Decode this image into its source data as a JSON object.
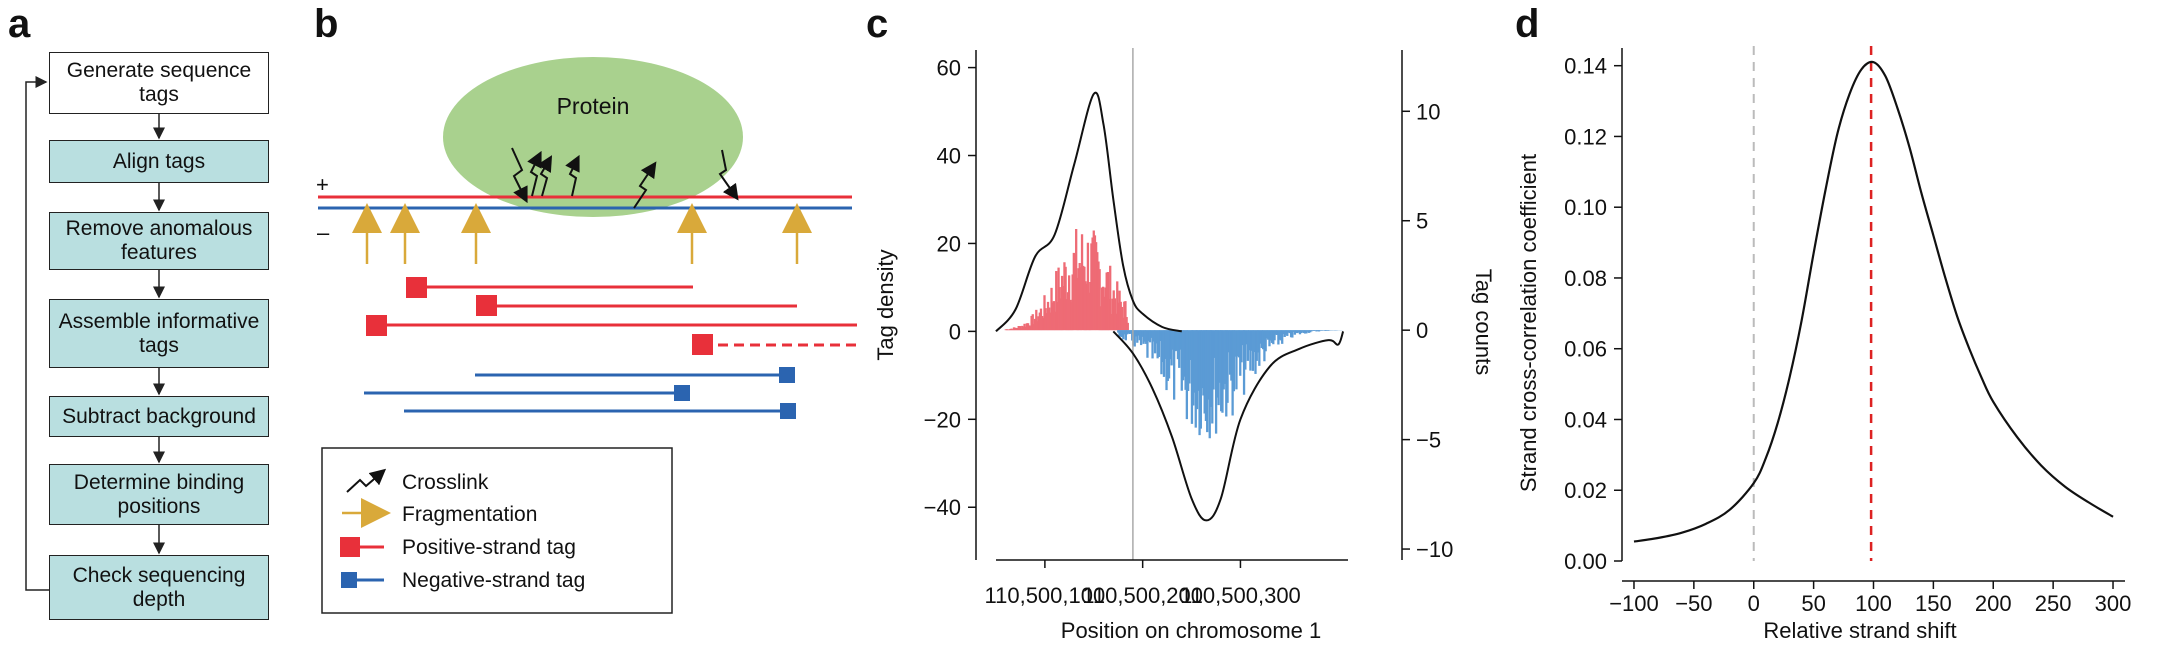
{
  "panel_letters": [
    "a",
    "b",
    "c",
    "d"
  ],
  "flowchart": {
    "steps": [
      "Generate sequence tags",
      "Align tags",
      "Remove anomalous features",
      "Assemble informative tags",
      "Subtract background",
      "Determine binding positions",
      "Check sequencing depth"
    ],
    "colors": {
      "step_fill": "#b9dfe0",
      "first_fill": "#ffffff",
      "border": "#222222"
    }
  },
  "schematic": {
    "protein_label": "Protein",
    "plus_label": "+",
    "minus_label": "–",
    "legend": [
      {
        "symbol": "crosslink",
        "label": "Crosslink"
      },
      {
        "symbol": "fragmentation",
        "label": "Fragmentation"
      },
      {
        "symbol": "positive",
        "label": "Positive-strand tag"
      },
      {
        "symbol": "negative",
        "label": "Negative-strand tag"
      }
    ],
    "colors": {
      "protein": "#a9d18e",
      "positive": "#e8303a",
      "negative": "#2b64b0",
      "arrow": "#d9a93a"
    }
  },
  "chart_data": [
    {
      "panel": "c",
      "type": "line",
      "xlabel": "Position on chromosome 1",
      "ylabel": "Tag density",
      "y2label": "Tag counts",
      "xticks": [
        "110,500,100",
        "110,500,200",
        "110,500,300"
      ],
      "xtick_values": [
        110500100,
        110500200,
        110500300
      ],
      "xlim": [
        110500050,
        110500410
      ],
      "ylim": [
        -52,
        64
      ],
      "yticks": [
        60,
        40,
        20,
        0,
        -20,
        -40
      ],
      "y2lim": [
        -10.5,
        12.8
      ],
      "y2ticks": [
        10,
        5,
        0,
        -5,
        -10
      ],
      "vline_x": 110500190,
      "positive_density": {
        "x": [
          110500050,
          110500070,
          110500090,
          110500110,
          110500130,
          110500150,
          110500160,
          110500170,
          110500180,
          110500190,
          110500200,
          110500220,
          110500240
        ],
        "y": [
          0,
          5,
          17,
          22,
          38,
          54,
          47,
          30,
          15,
          7,
          4,
          1,
          0
        ]
      },
      "negative_density": {
        "x": [
          110500170,
          110500190,
          110500210,
          110500230,
          110500250,
          110500265,
          110500280,
          110500300,
          110500330,
          110500360,
          110500390,
          110500400,
          110500405
        ],
        "y": [
          0,
          -5,
          -13,
          -24,
          -38,
          -43,
          -38,
          -20,
          -8,
          -4,
          -2,
          -3,
          0
        ]
      },
      "positive_counts": {
        "x_range": [
          110500060,
          110500185
        ],
        "max_count": 5
      },
      "negative_counts": {
        "x_range": [
          110500175,
          110500405
        ],
        "max_count": -5
      },
      "colors": {
        "positive": "#ee6b75",
        "negative": "#5b9bd5",
        "line": "#111111",
        "vline": "#aaaaaa"
      }
    },
    {
      "panel": "d",
      "type": "line",
      "xlabel": "Relative strand shift",
      "ylabel": "Strand cross-correlation coefficient",
      "xlim": [
        -110,
        310
      ],
      "ylim": [
        0,
        0.145
      ],
      "xticks": [
        -100,
        -50,
        0,
        50,
        100,
        150,
        200,
        250,
        300
      ],
      "yticks": [
        0.0,
        0.02,
        0.04,
        0.06,
        0.08,
        0.1,
        0.12,
        0.14
      ],
      "ytick_labels": [
        "0.00",
        "0.02",
        "0.04",
        "0.06",
        "0.08",
        "0.10",
        "0.12",
        "0.14"
      ],
      "series": [
        {
          "x": [
            -100,
            -80,
            -60,
            -40,
            -20,
            0,
            10,
            20,
            30,
            40,
            50,
            60,
            70,
            80,
            90,
            100,
            110,
            120,
            130,
            140,
            150,
            160,
            170,
            180,
            190,
            200,
            220,
            240,
            260,
            280,
            300
          ],
          "y": [
            0.0055,
            0.0065,
            0.008,
            0.0105,
            0.0145,
            0.022,
            0.029,
            0.039,
            0.052,
            0.068,
            0.087,
            0.105,
            0.121,
            0.132,
            0.139,
            0.141,
            0.137,
            0.128,
            0.117,
            0.104,
            0.092,
            0.08,
            0.069,
            0.06,
            0.052,
            0.045,
            0.035,
            0.027,
            0.021,
            0.0165,
            0.0125
          ]
        }
      ],
      "vlines": [
        {
          "x": 0,
          "color": "#bbbbbb"
        },
        {
          "x": 98,
          "color": "#dd2222"
        }
      ]
    }
  ]
}
